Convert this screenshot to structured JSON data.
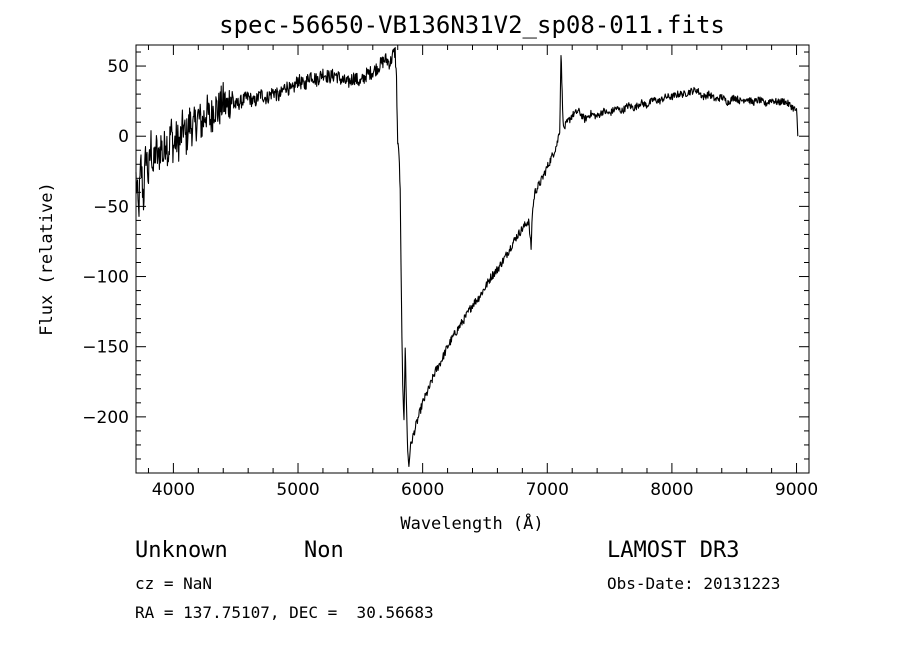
{
  "chart_data": {
    "type": "line",
    "title": "spec-56650-VB136N31V2_sp08-011.fits",
    "xlabel": "Wavelength (Å)",
    "ylabel": "Flux (relative)",
    "xlim": [
      3700,
      9100
    ],
    "ylim": [
      -240,
      65
    ],
    "xticks": [
      4000,
      5000,
      6000,
      7000,
      8000,
      9000
    ],
    "yticks": [
      50,
      0,
      -50,
      -100,
      -150,
      -200
    ],
    "grid": false,
    "series": [
      {
        "points": [
          [
            3700,
            -30
          ],
          [
            3720,
            -55
          ],
          [
            3740,
            -20
          ],
          [
            3760,
            -45
          ],
          [
            3780,
            -10
          ],
          [
            3800,
            -30
          ],
          [
            3820,
            -5
          ],
          [
            3840,
            -25
          ],
          [
            3860,
            -8
          ],
          [
            3880,
            -18
          ],
          [
            3900,
            -5
          ],
          [
            3920,
            -15
          ],
          [
            3940,
            0
          ],
          [
            3960,
            -12
          ],
          [
            3980,
            5
          ],
          [
            4000,
            -8
          ],
          [
            4020,
            -2
          ],
          [
            4050,
            -5
          ],
          [
            4080,
            8
          ],
          [
            4100,
            -3
          ],
          [
            4130,
            10
          ],
          [
            4160,
            5
          ],
          [
            4200,
            14
          ],
          [
            4230,
            8
          ],
          [
            4260,
            18
          ],
          [
            4300,
            12
          ],
          [
            4330,
            22
          ],
          [
            4360,
            18
          ],
          [
            4400,
            25
          ],
          [
            4430,
            20
          ],
          [
            4460,
            28
          ],
          [
            4500,
            22
          ],
          [
            4550,
            25
          ],
          [
            4600,
            28
          ],
          [
            4650,
            24
          ],
          [
            4700,
            30
          ],
          [
            4750,
            27
          ],
          [
            4800,
            32
          ],
          [
            4850,
            28
          ],
          [
            4900,
            36
          ],
          [
            4950,
            32
          ],
          [
            5000,
            40
          ],
          [
            5050,
            36
          ],
          [
            5100,
            44
          ],
          [
            5150,
            40
          ],
          [
            5200,
            45
          ],
          [
            5250,
            42
          ],
          [
            5300,
            44
          ],
          [
            5350,
            40
          ],
          [
            5400,
            38
          ],
          [
            5450,
            42
          ],
          [
            5500,
            38
          ],
          [
            5550,
            44
          ],
          [
            5600,
            46
          ],
          [
            5650,
            50
          ],
          [
            5700,
            55
          ],
          [
            5740,
            52
          ],
          [
            5760,
            58
          ],
          [
            5780,
            60
          ],
          [
            5790,
            40
          ],
          [
            5800,
            -5
          ],
          [
            5810,
            -12
          ],
          [
            5820,
            -40
          ],
          [
            5830,
            -120
          ],
          [
            5840,
            -180
          ],
          [
            5850,
            -200
          ],
          [
            5860,
            -150
          ],
          [
            5870,
            -190
          ],
          [
            5880,
            -225
          ],
          [
            5890,
            -235
          ],
          [
            5900,
            -222
          ],
          [
            5920,
            -215
          ],
          [
            5950,
            -205
          ],
          [
            6000,
            -190
          ],
          [
            6050,
            -180
          ],
          [
            6100,
            -168
          ],
          [
            6150,
            -160
          ],
          [
            6200,
            -150
          ],
          [
            6250,
            -142
          ],
          [
            6300,
            -135
          ],
          [
            6350,
            -128
          ],
          [
            6400,
            -120
          ],
          [
            6450,
            -115
          ],
          [
            6500,
            -108
          ],
          [
            6550,
            -100
          ],
          [
            6600,
            -95
          ],
          [
            6650,
            -88
          ],
          [
            6700,
            -80
          ],
          [
            6750,
            -72
          ],
          [
            6800,
            -66
          ],
          [
            6850,
            -60
          ],
          [
            6870,
            -80
          ],
          [
            6880,
            -55
          ],
          [
            6900,
            -40
          ],
          [
            6950,
            -32
          ],
          [
            7000,
            -22
          ],
          [
            7050,
            -12
          ],
          [
            7080,
            -5
          ],
          [
            7100,
            5
          ],
          [
            7110,
            60
          ],
          [
            7120,
            30
          ],
          [
            7130,
            5
          ],
          [
            7150,
            8
          ],
          [
            7200,
            15
          ],
          [
            7250,
            18
          ],
          [
            7300,
            12
          ],
          [
            7350,
            16
          ],
          [
            7400,
            14
          ],
          [
            7450,
            18
          ],
          [
            7500,
            16
          ],
          [
            7550,
            20
          ],
          [
            7600,
            18
          ],
          [
            7650,
            22
          ],
          [
            7700,
            20
          ],
          [
            7750,
            24
          ],
          [
            7800,
            22
          ],
          [
            7850,
            26
          ],
          [
            7900,
            25
          ],
          [
            7950,
            28
          ],
          [
            8000,
            28
          ],
          [
            8050,
            30
          ],
          [
            8100,
            30
          ],
          [
            8150,
            32
          ],
          [
            8200,
            33
          ],
          [
            8250,
            28
          ],
          [
            8300,
            30
          ],
          [
            8350,
            26
          ],
          [
            8400,
            28
          ],
          [
            8450,
            24
          ],
          [
            8500,
            28
          ],
          [
            8550,
            25
          ],
          [
            8600,
            27
          ],
          [
            8650,
            24
          ],
          [
            8700,
            26
          ],
          [
            8750,
            23
          ],
          [
            8800,
            26
          ],
          [
            8850,
            24
          ],
          [
            8900,
            25
          ],
          [
            8950,
            22
          ],
          [
            9000,
            18
          ],
          [
            9010,
            0
          ]
        ]
      }
    ]
  },
  "info": {
    "object_class": "Unknown",
    "subclass": "Non",
    "survey": "LAMOST DR3",
    "redshift": "cz = NaN",
    "obs_date": "Obs-Date: 20131223",
    "coords": "RA = 137.75107, DEC =  30.56683"
  }
}
